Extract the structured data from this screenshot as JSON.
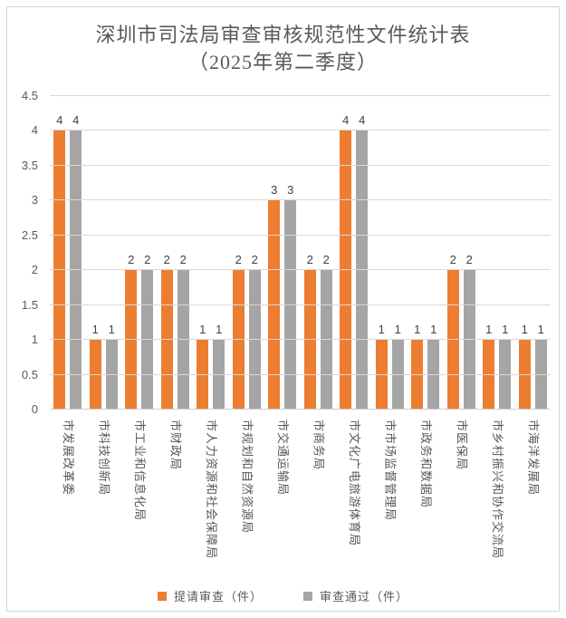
{
  "title": {
    "line1": "深圳市司法局审查审核规范性文件统计表",
    "line2": "（2025年第二季度）"
  },
  "chart_data": {
    "type": "bar",
    "title": "深圳市司法局审查审核规范性文件统计表（2025年第二季度）",
    "categories": [
      "市发展改革委",
      "市科技创新局",
      "市工业和信息化局",
      "市财政局",
      "市人力资源和社会保障局",
      "市规划和自然资源局",
      "市交通运输局",
      "市商务局",
      "市文化广电旅游体育局",
      "市市场监督管理局",
      "市政务和数据局",
      "市医保局",
      "市乡村振兴和协作交流局",
      "市海洋发展局"
    ],
    "series": [
      {
        "name": "提请审查（件）",
        "color": "#ED7D31",
        "values": [
          4,
          1,
          2,
          2,
          1,
          2,
          3,
          2,
          4,
          1,
          1,
          2,
          1,
          1
        ]
      },
      {
        "name": "审查通过（件）",
        "color": "#A5A5A5",
        "values": [
          4,
          1,
          2,
          2,
          1,
          2,
          3,
          2,
          4,
          1,
          1,
          2,
          1,
          1
        ]
      }
    ],
    "ylim": [
      0,
      4.5
    ],
    "ytick_step": 0.5,
    "grid": true,
    "data_labels": true,
    "legend_position": "bottom"
  },
  "style": {
    "grid_color": "#D9D9D9",
    "axis_line_color": "#CFCFCF",
    "tick_label_color": "#595959",
    "data_label_color": "#404040",
    "category_label_color": "#595959",
    "legend_text_color": "#595959",
    "title_color": "#595959",
    "frame_border_color": "#D6D6D6",
    "background": "#FFFFFF"
  }
}
